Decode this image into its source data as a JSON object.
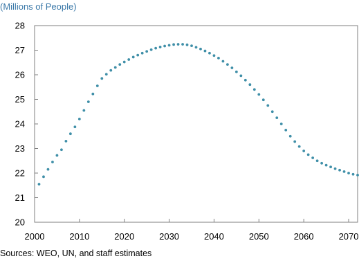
{
  "chart_data": {
    "type": "scatter",
    "title": "",
    "unit_label": "(Millions of People)",
    "xlabel": "",
    "ylabel": "",
    "xlim": [
      2000,
      2072
    ],
    "ylim": [
      20,
      28
    ],
    "x_ticks": [
      2000,
      2010,
      2020,
      2030,
      2040,
      2050,
      2060,
      2070
    ],
    "y_ticks": [
      20,
      21,
      22,
      23,
      24,
      25,
      26,
      27,
      28
    ],
    "grid": false,
    "legend": "none",
    "marker_color": "#3f8fa8",
    "source": "Sources: WEO, UN, and staff estimates",
    "series": [
      {
        "x": [
          2001,
          2002,
          2003,
          2004,
          2005,
          2006,
          2007,
          2008,
          2009,
          2010,
          2011,
          2012,
          2013,
          2014,
          2015,
          2016,
          2017,
          2018,
          2019,
          2020,
          2021,
          2022,
          2023,
          2024,
          2025,
          2026,
          2027,
          2028,
          2029,
          2030,
          2031,
          2032,
          2033,
          2034,
          2035,
          2036,
          2037,
          2038,
          2039,
          2040,
          2041,
          2042,
          2043,
          2044,
          2045,
          2046,
          2047,
          2048,
          2049,
          2050,
          2051,
          2052,
          2053,
          2054,
          2055,
          2056,
          2057,
          2058,
          2059,
          2060,
          2061,
          2062,
          2063,
          2064,
          2065,
          2066,
          2067,
          2068,
          2069,
          2070,
          2071,
          2072
        ],
        "values": [
          21.55,
          21.85,
          22.15,
          22.45,
          22.72,
          22.95,
          23.3,
          23.6,
          23.88,
          24.2,
          24.55,
          24.9,
          25.22,
          25.55,
          25.85,
          26.02,
          26.18,
          26.3,
          26.42,
          26.52,
          26.62,
          26.72,
          26.8,
          26.88,
          26.95,
          27.02,
          27.08,
          27.13,
          27.17,
          27.2,
          27.23,
          27.24,
          27.24,
          27.22,
          27.18,
          27.12,
          27.05,
          26.97,
          26.88,
          26.78,
          26.68,
          26.55,
          26.42,
          26.28,
          26.12,
          25.96,
          25.78,
          25.6,
          25.4,
          25.2,
          24.98,
          24.75,
          24.5,
          24.25,
          24.0,
          23.75,
          23.5,
          23.28,
          23.08,
          22.9,
          22.75,
          22.62,
          22.5,
          22.4,
          22.32,
          22.25,
          22.18,
          22.12,
          22.06,
          22.0,
          21.95,
          21.92
        ]
      }
    ]
  }
}
